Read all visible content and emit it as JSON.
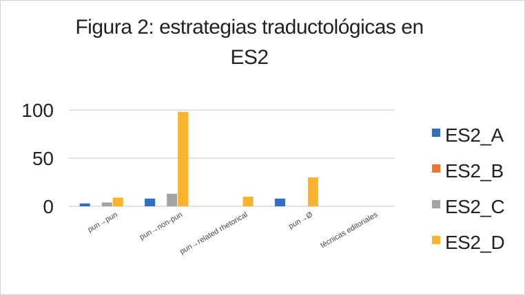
{
  "chart_data": {
    "type": "bar",
    "title_line1": "Figura 2: estrategias traductológicas en",
    "title_line2": "ES2",
    "categories": [
      "pun→pun",
      "pun→non-pun",
      "pun→related rhetorical",
      "pun→Ø",
      "técnicas editoriales"
    ],
    "series": [
      {
        "name": "ES2_A",
        "color": "#2f6fbf",
        "values": [
          3,
          8,
          0,
          8,
          0
        ]
      },
      {
        "name": "ES2_B",
        "color": "#f0752f",
        "values": [
          0,
          0,
          0,
          0,
          0
        ]
      },
      {
        "name": "ES2_C",
        "color": "#a3a3a3",
        "values": [
          4,
          13,
          0,
          0,
          0
        ]
      },
      {
        "name": "ES2_D",
        "color": "#fbb22d",
        "values": [
          9,
          98,
          10,
          30,
          0
        ]
      }
    ],
    "yticks": [
      "0",
      "50",
      "100"
    ],
    "ylim": [
      0,
      100
    ],
    "grid": true,
    "legend": "right"
  }
}
